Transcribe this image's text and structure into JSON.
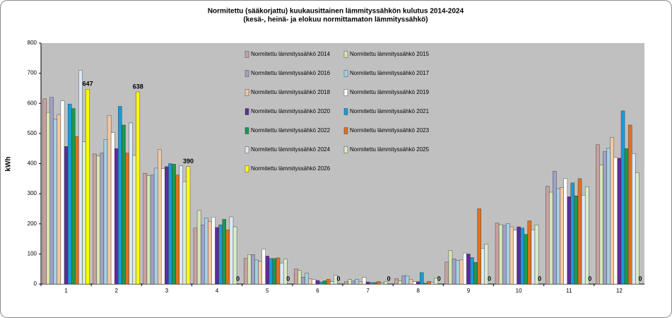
{
  "chart_data": {
    "type": "bar",
    "title": "Normitettu (sääkorjattu) kuukausittainen lämmityssähkön kulutus 2014-2024",
    "subtitle": "(kesä-, heinä- ja elokuu normittamaton lämmityssähkö)",
    "y_label": "kWh",
    "categories": [
      "1",
      "2",
      "3",
      "4",
      "5",
      "6",
      "7",
      "8",
      "9",
      "10",
      "11",
      "12"
    ],
    "ylim": [
      0,
      800
    ],
    "yticks": [
      0,
      100,
      200,
      300,
      400,
      500,
      600,
      700,
      800
    ],
    "grid": false,
    "legend": "top-center",
    "series": [
      {
        "name": "Normitettu lämmityssähkö 2014",
        "color": "#c9a0a0",
        "values": [
          615,
          432,
          368,
          186,
          85,
          50,
          8,
          18,
          73,
          203,
          325,
          463
        ]
      },
      {
        "name": "Normitettu lämmityssähkö 2015",
        "color": "#d4e6b5",
        "values": [
          570,
          425,
          360,
          245,
          98,
          45,
          15,
          10,
          112,
          197,
          305,
          395
        ]
      },
      {
        "name": "Normitettu lämmityssähkö 2016",
        "color": "#a0a0c8",
        "values": [
          620,
          435,
          362,
          196,
          98,
          23,
          10,
          28,
          84,
          195,
          375,
          440
        ]
      },
      {
        "name": "Normitettu lämmityssähkö 2017",
        "color": "#a6d0e4",
        "values": [
          548,
          480,
          385,
          220,
          80,
          36,
          16,
          27,
          78,
          201,
          317,
          452
        ]
      },
      {
        "name": "Normitettu lämmityssähkö 2018",
        "color": "#f5c8a0",
        "values": [
          563,
          560,
          447,
          208,
          76,
          18,
          8,
          15,
          80,
          190,
          320,
          487
        ]
      },
      {
        "name": "Normitettu lämmityssähkö 2019",
        "color": "#ffffff",
        "values": [
          608,
          503,
          383,
          222,
          116,
          15,
          22,
          8,
          103,
          179,
          350,
          420
        ]
      },
      {
        "name": "Normitettu lämmityssähkö 2020",
        "color": "#5b2d9c",
        "values": [
          457,
          450,
          390,
          188,
          93,
          12,
          7,
          8,
          100,
          190,
          290,
          418
        ]
      },
      {
        "name": "Normitettu lämmityssähkö 2021",
        "color": "#1a9ad6",
        "values": [
          598,
          590,
          400,
          197,
          85,
          7,
          5,
          38,
          88,
          186,
          336,
          575
        ]
      },
      {
        "name": "Normitettu lämmityssähkö 2022",
        "color": "#1a9a4a",
        "values": [
          583,
          528,
          398,
          215,
          85,
          11,
          5,
          3,
          72,
          165,
          293,
          450
        ]
      },
      {
        "name": "Normitettu lämmityssähkö 2023",
        "color": "#e07020",
        "values": [
          490,
          435,
          362,
          180,
          87,
          16,
          9,
          9,
          250,
          210,
          350,
          528
        ]
      },
      {
        "name": "Normitettu lämmityssähkö 2024",
        "color": "#dce8f5",
        "values": [
          710,
          535,
          393,
          223,
          70,
          8,
          3,
          5,
          119,
          180,
          295,
          433
        ]
      },
      {
        "name": "Normitettu lämmityssähkö 2025",
        "color": "#d8ecc8",
        "values": [
          473,
          427,
          340,
          190,
          83,
          30,
          8,
          20,
          133,
          196,
          323,
          370
        ]
      },
      {
        "name": "Normitettu lämmityssähkö 2026",
        "color": "#ffff00",
        "data_labels": true,
        "values": [
          647,
          638,
          390,
          0,
          0,
          0,
          0,
          0,
          0,
          0,
          0,
          0
        ]
      }
    ]
  }
}
